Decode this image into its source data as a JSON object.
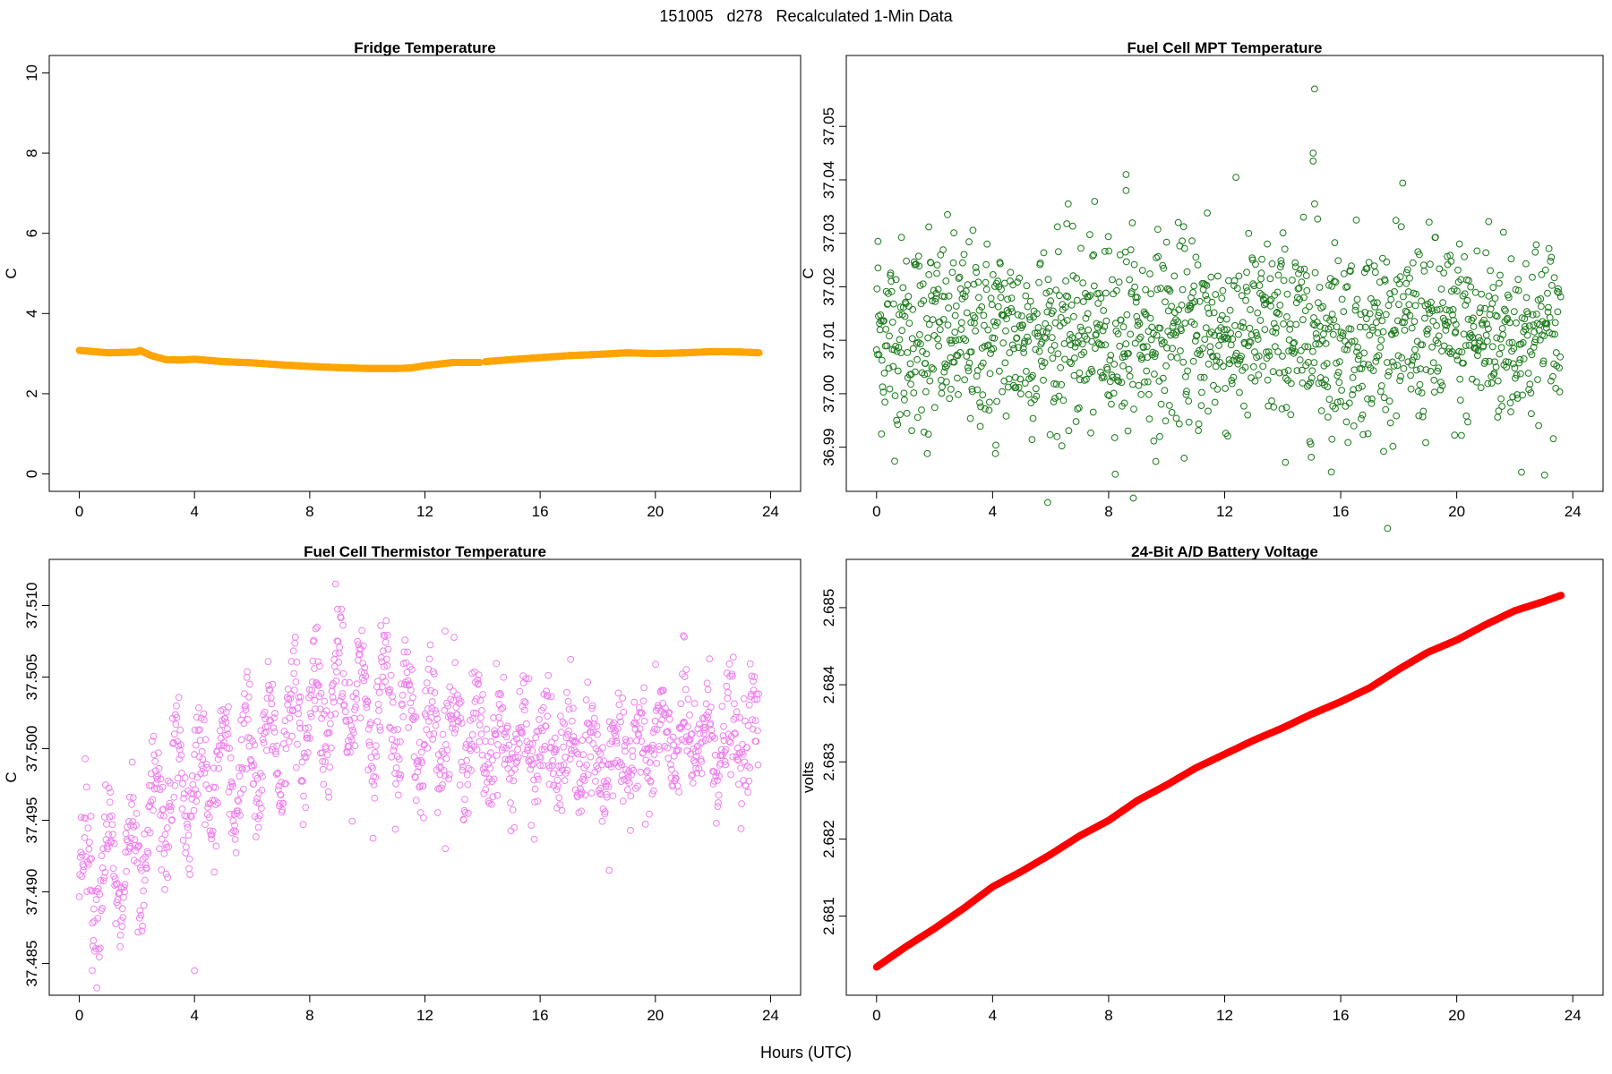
{
  "page": {
    "title": "151005   d278   Recalculated 1-Min Data",
    "xlabel": "Hours (UTC)"
  },
  "chart_data": [
    {
      "type": "line",
      "title": "Fridge Temperature",
      "ylabel": "C",
      "xlabel": "",
      "xlim": [
        0,
        24
      ],
      "ylim": [
        0,
        10
      ],
      "xticks": [
        0,
        4,
        8,
        12,
        16,
        20,
        24
      ],
      "yticks": [
        0,
        2,
        4,
        6,
        8,
        10
      ],
      "ytick_labels": [
        "0",
        "2",
        "4",
        "6",
        "8",
        "10"
      ],
      "color": "#ffa500",
      "marker": "filled",
      "gap": [
        13.9,
        14.1
      ],
      "x": [
        0,
        0.5,
        1,
        1.5,
        2,
        2.1,
        2.5,
        3,
        3.5,
        4,
        5,
        6,
        7,
        8,
        9,
        10,
        11,
        11.5,
        12,
        13,
        13.9,
        14.1,
        15,
        16,
        17,
        18,
        19,
        20,
        21,
        22,
        23,
        23.6
      ],
      "y": [
        3.08,
        3.05,
        3.02,
        3.03,
        3.04,
        3.08,
        2.95,
        2.85,
        2.84,
        2.86,
        2.8,
        2.77,
        2.72,
        2.68,
        2.65,
        2.63,
        2.63,
        2.64,
        2.7,
        2.78,
        2.78,
        2.8,
        2.85,
        2.9,
        2.95,
        2.98,
        3.02,
        3.0,
        3.02,
        3.05,
        3.04,
        3.02
      ]
    },
    {
      "type": "scatter",
      "title": "Fuel Cell MPT Temperature",
      "ylabel": "C",
      "xlabel": "",
      "xlim": [
        0,
        24
      ],
      "ylim": [
        36.985,
        37.06
      ],
      "xticks": [
        0,
        4,
        8,
        12,
        16,
        20,
        24
      ],
      "yticks": [
        36.99,
        37.0,
        37.01,
        37.02,
        37.03,
        37.04,
        37.05
      ],
      "ytick_labels": [
        "36.99",
        "37.00",
        "37.01",
        "37.02",
        "37.03",
        "37.04",
        "37.05"
      ],
      "color": "#1a7a1a",
      "marker": "open",
      "n_points": 1400,
      "center": 37.011,
      "spread": 0.009,
      "outliers": [
        {
          "x": 0.05,
          "y": 37.0285
        },
        {
          "x": 1.75,
          "y": 36.9888
        },
        {
          "x": 1.8,
          "y": 37.0312
        },
        {
          "x": 4.1,
          "y": 36.9888
        },
        {
          "x": 8.6,
          "y": 37.041
        },
        {
          "x": 8.6,
          "y": 37.038
        },
        {
          "x": 15.1,
          "y": 37.057
        },
        {
          "x": 15.05,
          "y": 37.045
        },
        {
          "x": 15.05,
          "y": 37.0435
        },
        {
          "x": 15.1,
          "y": 37.0355
        },
        {
          "x": 15.7,
          "y": 36.9915
        },
        {
          "x": 11.4,
          "y": 37.0338
        },
        {
          "x": 21.1,
          "y": 37.0322
        }
      ]
    },
    {
      "type": "scatter",
      "title": "Fuel Cell Thermistor Temperature",
      "ylabel": "C",
      "xlabel": "",
      "xlim": [
        0,
        24
      ],
      "ylim": [
        37.484,
        37.512
      ],
      "xticks": [
        0,
        4,
        8,
        12,
        16,
        20,
        24
      ],
      "yticks": [
        37.485,
        37.49,
        37.495,
        37.5,
        37.505,
        37.51
      ],
      "ytick_labels": [
        "37.485",
        "37.490",
        "37.495",
        "37.500",
        "37.505",
        "37.510"
      ],
      "color": "#ee82ee",
      "marker": "open",
      "n_points": 1400,
      "trend_x": [
        0,
        2,
        3,
        4,
        6,
        8,
        9,
        11,
        12,
        14,
        16,
        18,
        20,
        22,
        24
      ],
      "trend_y": [
        37.4915,
        37.4915,
        37.497,
        37.4975,
        37.499,
        37.5025,
        37.5035,
        37.5025,
        37.5015,
        37.5005,
        37.5,
        37.499,
        37.5005,
        37.5005,
        37.5005
      ],
      "outliers": [
        {
          "x": 8.9,
          "y": 37.5115
        },
        {
          "x": 0.45,
          "y": 37.4845
        },
        {
          "x": 4.0,
          "y": 37.4845
        },
        {
          "x": 12.7,
          "y": 37.5082
        },
        {
          "x": 21.0,
          "y": 37.5078
        },
        {
          "x": 18.4,
          "y": 37.4915
        }
      ]
    },
    {
      "type": "line",
      "title": "24-Bit A/D Battery Voltage",
      "ylabel": "volts",
      "xlabel": "",
      "xlim": [
        0,
        24
      ],
      "ylim": [
        2.6802,
        2.6854
      ],
      "xticks": [
        0,
        4,
        8,
        12,
        16,
        20,
        24
      ],
      "yticks": [
        2.681,
        2.682,
        2.683,
        2.684,
        2.685
      ],
      "ytick_labels": [
        "2.681",
        "2.682",
        "2.683",
        "2.684",
        "2.685"
      ],
      "color": "#ff0000",
      "marker": "filled",
      "x": [
        0,
        1,
        2,
        3,
        4,
        5,
        6,
        7,
        8,
        9,
        10,
        11,
        12,
        13,
        14,
        15,
        16,
        17,
        18,
        19,
        20,
        21,
        22,
        23,
        23.6
      ],
      "y": [
        2.68034,
        2.6806,
        2.68084,
        2.6811,
        2.68138,
        2.68158,
        2.6818,
        2.68204,
        2.68224,
        2.6825,
        2.6827,
        2.68292,
        2.6831,
        2.68328,
        2.68344,
        2.68362,
        2.68378,
        2.68396,
        2.6842,
        2.68442,
        2.68458,
        2.68478,
        2.68496,
        2.68508,
        2.68516
      ]
    }
  ]
}
